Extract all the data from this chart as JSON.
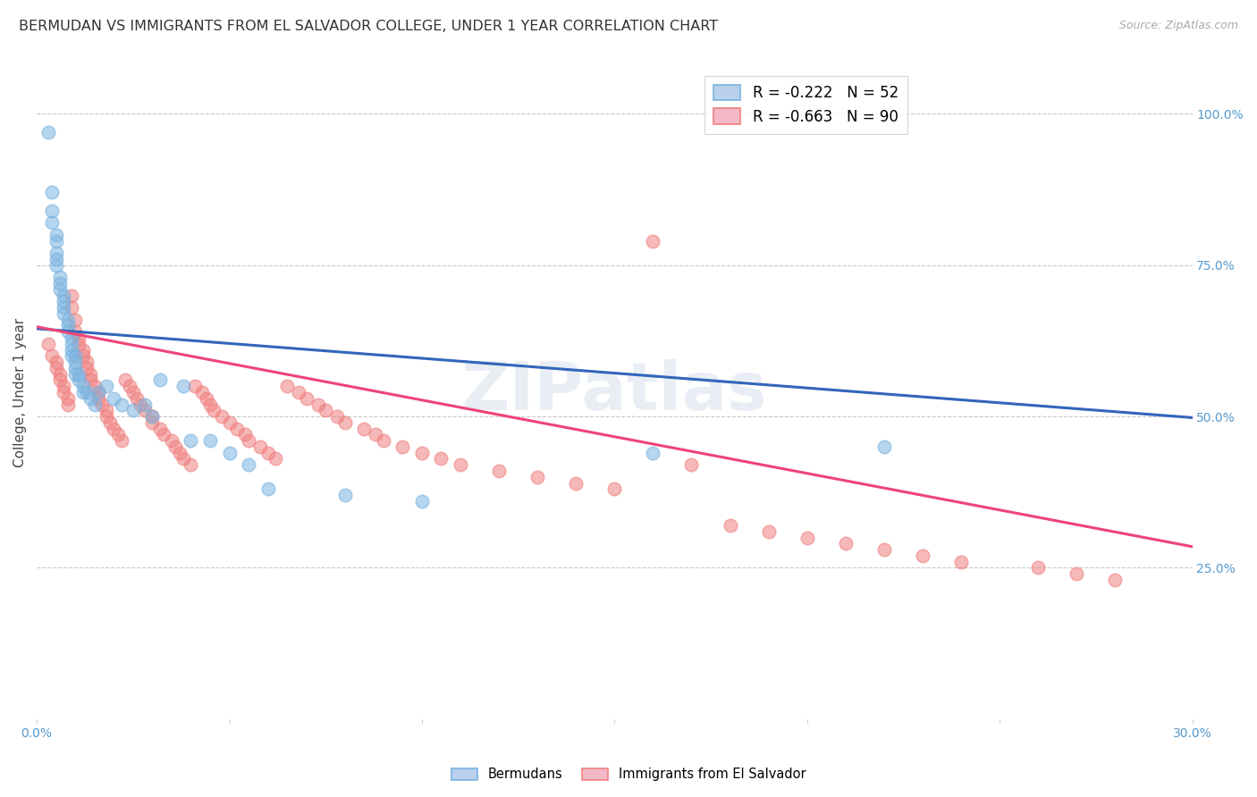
{
  "title": "BERMUDAN VS IMMIGRANTS FROM EL SALVADOR COLLEGE, UNDER 1 YEAR CORRELATION CHART",
  "source": "Source: ZipAtlas.com",
  "ylabel": "College, Under 1 year",
  "x_min": 0.0,
  "x_max": 0.3,
  "y_min": 0.0,
  "y_max": 1.08,
  "background_color": "#ffffff",
  "grid_color": "#c8c8c8",
  "watermark": "ZIPatlas",
  "title_fontsize": 11.5,
  "axis_label_fontsize": 11,
  "tick_fontsize": 10,
  "legend_fontsize": 12,
  "tick_color": "#5599cc",
  "title_color": "#333333",
  "source_color": "#aaaaaa",
  "ylabel_color": "#444444",
  "blue_color": "#7ab3e0",
  "blue_line_color": "#3366bb",
  "blue_dash_color": "#99bbdd",
  "pink_color": "#f08080",
  "pink_line_color": "#ee4477",
  "bermudans_x": [
    0.003,
    0.004,
    0.004,
    0.004,
    0.005,
    0.005,
    0.005,
    0.005,
    0.005,
    0.006,
    0.006,
    0.006,
    0.007,
    0.007,
    0.007,
    0.007,
    0.008,
    0.008,
    0.008,
    0.009,
    0.009,
    0.009,
    0.009,
    0.01,
    0.01,
    0.01,
    0.01,
    0.011,
    0.011,
    0.012,
    0.012,
    0.013,
    0.014,
    0.015,
    0.016,
    0.018,
    0.02,
    0.022,
    0.025,
    0.028,
    0.03,
    0.032,
    0.038,
    0.04,
    0.045,
    0.05,
    0.055,
    0.06,
    0.08,
    0.1,
    0.16,
    0.22
  ],
  "bermudans_y": [
    0.97,
    0.87,
    0.84,
    0.82,
    0.8,
    0.79,
    0.77,
    0.76,
    0.75,
    0.73,
    0.72,
    0.71,
    0.7,
    0.69,
    0.68,
    0.67,
    0.66,
    0.65,
    0.64,
    0.63,
    0.62,
    0.61,
    0.6,
    0.6,
    0.59,
    0.58,
    0.57,
    0.57,
    0.56,
    0.55,
    0.54,
    0.54,
    0.53,
    0.52,
    0.54,
    0.55,
    0.53,
    0.52,
    0.51,
    0.52,
    0.5,
    0.56,
    0.55,
    0.46,
    0.46,
    0.44,
    0.42,
    0.38,
    0.37,
    0.36,
    0.44,
    0.45
  ],
  "el_salvador_x": [
    0.003,
    0.004,
    0.005,
    0.005,
    0.006,
    0.006,
    0.007,
    0.007,
    0.008,
    0.008,
    0.009,
    0.009,
    0.01,
    0.01,
    0.011,
    0.011,
    0.012,
    0.012,
    0.013,
    0.013,
    0.014,
    0.014,
    0.015,
    0.016,
    0.016,
    0.017,
    0.018,
    0.018,
    0.019,
    0.02,
    0.021,
    0.022,
    0.023,
    0.024,
    0.025,
    0.026,
    0.027,
    0.028,
    0.03,
    0.03,
    0.032,
    0.033,
    0.035,
    0.036,
    0.037,
    0.038,
    0.04,
    0.041,
    0.043,
    0.044,
    0.045,
    0.046,
    0.048,
    0.05,
    0.052,
    0.054,
    0.055,
    0.058,
    0.06,
    0.062,
    0.065,
    0.068,
    0.07,
    0.073,
    0.075,
    0.078,
    0.08,
    0.085,
    0.088,
    0.09,
    0.095,
    0.1,
    0.105,
    0.11,
    0.12,
    0.13,
    0.14,
    0.15,
    0.16,
    0.17,
    0.18,
    0.19,
    0.2,
    0.21,
    0.22,
    0.23,
    0.24,
    0.26,
    0.27,
    0.28
  ],
  "el_salvador_y": [
    0.62,
    0.6,
    0.59,
    0.58,
    0.57,
    0.56,
    0.55,
    0.54,
    0.53,
    0.52,
    0.7,
    0.68,
    0.66,
    0.64,
    0.63,
    0.62,
    0.61,
    0.6,
    0.59,
    0.58,
    0.57,
    0.56,
    0.55,
    0.54,
    0.53,
    0.52,
    0.51,
    0.5,
    0.49,
    0.48,
    0.47,
    0.46,
    0.56,
    0.55,
    0.54,
    0.53,
    0.52,
    0.51,
    0.5,
    0.49,
    0.48,
    0.47,
    0.46,
    0.45,
    0.44,
    0.43,
    0.42,
    0.55,
    0.54,
    0.53,
    0.52,
    0.51,
    0.5,
    0.49,
    0.48,
    0.47,
    0.46,
    0.45,
    0.44,
    0.43,
    0.55,
    0.54,
    0.53,
    0.52,
    0.51,
    0.5,
    0.49,
    0.48,
    0.47,
    0.46,
    0.45,
    0.44,
    0.43,
    0.42,
    0.41,
    0.4,
    0.39,
    0.38,
    0.79,
    0.42,
    0.32,
    0.31,
    0.3,
    0.29,
    0.28,
    0.27,
    0.26,
    0.25,
    0.24,
    0.23
  ],
  "blue_trend_x0": 0.0,
  "blue_trend_y0": 0.645,
  "blue_trend_x1": 0.3,
  "blue_trend_y1": 0.498,
  "pink_trend_x0": 0.0,
  "pink_trend_y0": 0.648,
  "pink_trend_x1": 0.3,
  "pink_trend_y1": 0.285
}
